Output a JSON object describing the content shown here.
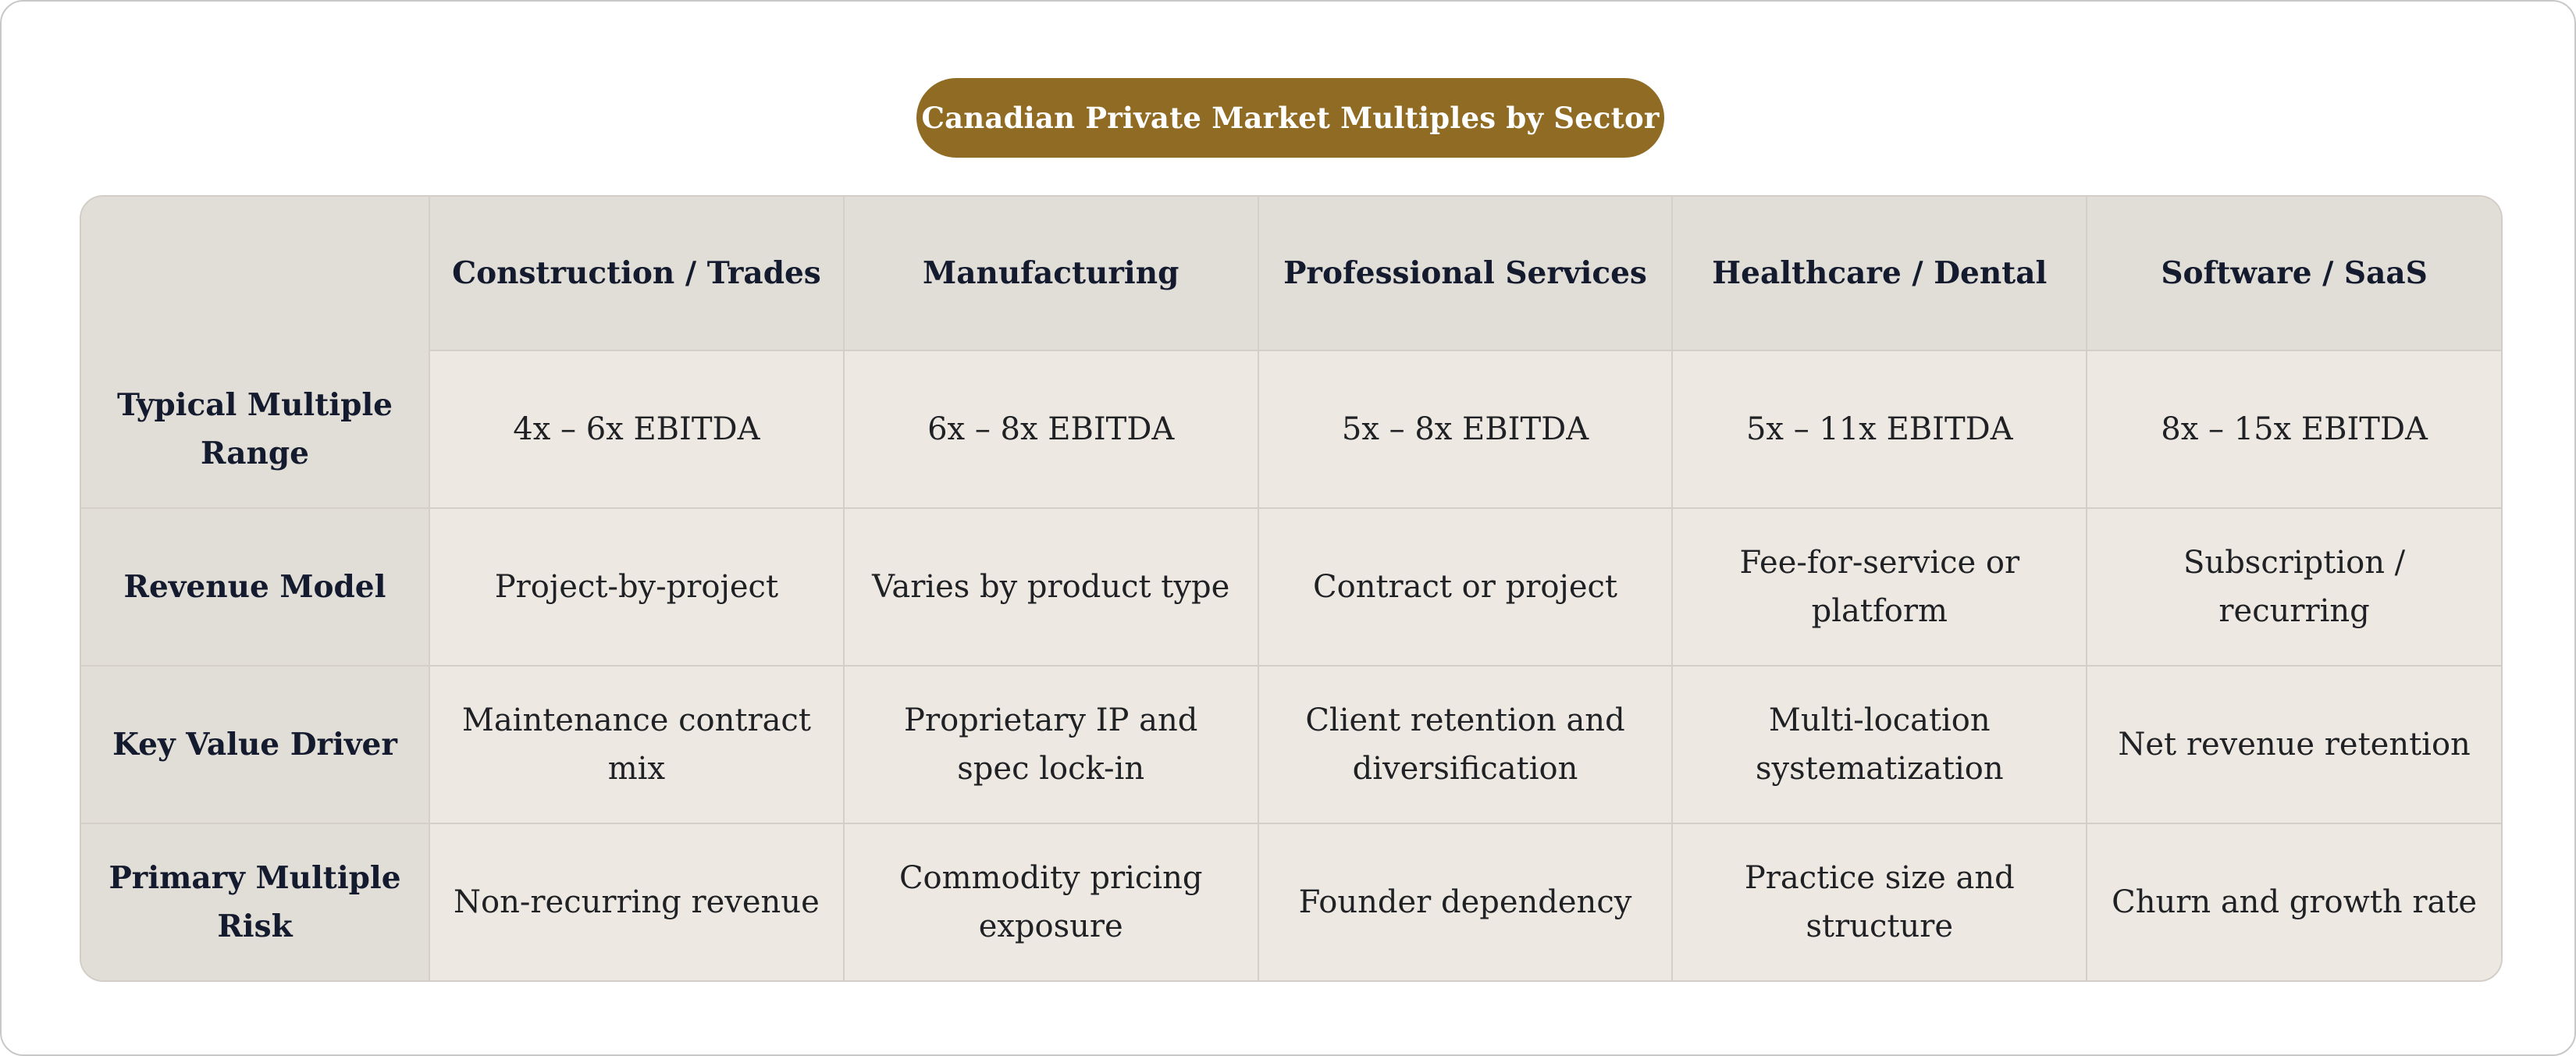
{
  "title": "Canadian Private Market Multiples by Sector",
  "table": {
    "corner": "",
    "columns": [
      "Construction / Trades",
      "Manufacturing",
      "Professional Services",
      "Healthcare / Dental",
      "Software / SaaS"
    ],
    "rows": [
      {
        "label": "Typical Multiple Range",
        "cells": [
          "4x – 6x EBITDA",
          "6x – 8x EBITDA",
          "5x – 8x EBITDA",
          "5x – 11x EBITDA",
          "8x – 15x EBITDA"
        ]
      },
      {
        "label": "Revenue Model",
        "cells": [
          "Project-by-project",
          "Varies by product type",
          "Contract or project",
          "Fee-for-service or platform",
          "Subscription / recurring"
        ]
      },
      {
        "label": "Key Value Driver",
        "cells": [
          "Maintenance contract mix",
          "Proprietary IP and spec lock-in",
          "Client retention and diversification",
          "Multi-location systematization",
          "Net revenue retention"
        ]
      },
      {
        "label": "Primary Multiple Risk",
        "cells": [
          "Non-recurring revenue",
          "Commodity pricing exposure",
          "Founder dependency",
          "Practice size and structure",
          "Churn and growth rate"
        ]
      }
    ]
  },
  "colors": {
    "title_pill": "#8f6b24",
    "header_bg": "#e1ddd7",
    "cell_bg": "#ede8e2",
    "text_dark": "#141b2e"
  }
}
